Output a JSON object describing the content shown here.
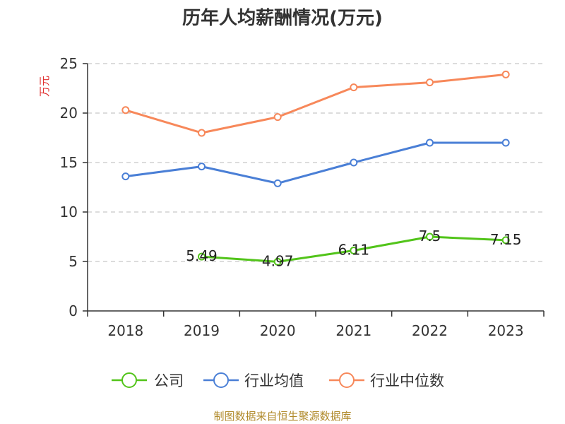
{
  "chart_data": {
    "type": "line",
    "title": "历年人均薪酬情况(万元)",
    "ylabel": "万元",
    "xlabel": "",
    "categories": [
      "2018",
      "2019",
      "2020",
      "2021",
      "2022",
      "2023"
    ],
    "ylim": [
      0,
      25
    ],
    "yticks": [
      0,
      5,
      10,
      15,
      20,
      25
    ],
    "grid": true,
    "legend_position": "bottom",
    "series": [
      {
        "name": "公司",
        "color": "#52c41a",
        "values": [
          null,
          5.49,
          4.97,
          6.11,
          7.5,
          7.15
        ],
        "labels": [
          null,
          "5.49",
          "4.97",
          "6.11",
          "7.5",
          "7.15"
        ]
      },
      {
        "name": "行业均值",
        "color": "#4a7fd6",
        "values": [
          13.6,
          14.6,
          12.9,
          15.0,
          17.0,
          17.0
        ]
      },
      {
        "name": "行业中位数",
        "color": "#f7885a",
        "values": [
          20.3,
          18.0,
          19.6,
          22.6,
          23.1,
          23.9
        ]
      }
    ],
    "source": "制图数据来自恒生聚源数据库"
  }
}
